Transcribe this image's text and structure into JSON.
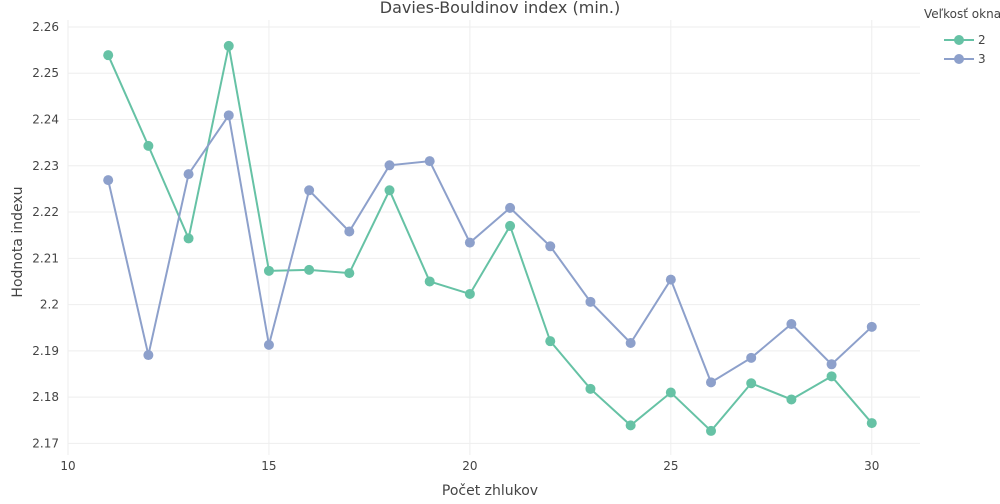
{
  "chart_data": {
    "type": "line",
    "title": "Davies-Bouldinov index (min.)",
    "xlabel": "Počet zhlukov",
    "ylabel": "Hodnota indexu",
    "xlim": [
      10,
      31.2
    ],
    "ylim": [
      2.1675,
      2.2615
    ],
    "x_ticks": [
      10,
      15,
      20,
      25,
      30
    ],
    "x_tick_labels": [
      "10",
      "15",
      "20",
      "25",
      "30"
    ],
    "y_ticks": [
      2.17,
      2.18,
      2.19,
      2.2,
      2.21,
      2.22,
      2.23,
      2.24,
      2.25,
      2.26
    ],
    "y_tick_labels": [
      "2.17",
      "2.18",
      "2.19",
      "2.2",
      "2.21",
      "2.22",
      "2.23",
      "2.24",
      "2.25",
      "2.26"
    ],
    "grid": true,
    "legend_title": "Veľkosť okna",
    "legend_position": "top-right",
    "x": [
      11,
      12,
      13,
      14,
      15,
      16,
      17,
      18,
      19,
      20,
      21,
      22,
      23,
      24,
      25,
      26,
      27,
      28,
      29,
      30
    ],
    "series": [
      {
        "name": "2",
        "color": "#66c2a5",
        "values": [
          2.2539,
          2.2343,
          2.2143,
          2.2559,
          2.2073,
          2.2075,
          2.2068,
          2.2247,
          2.205,
          2.2023,
          2.217,
          2.1921,
          2.1818,
          2.1739,
          2.181,
          2.1727,
          2.183,
          2.1795,
          2.1845,
          2.1744
        ]
      },
      {
        "name": "3",
        "color": "#8da0cb",
        "values": [
          2.2269,
          2.1891,
          2.2282,
          2.2409,
          2.1913,
          2.2247,
          2.2158,
          2.2301,
          2.231,
          2.2134,
          2.2209,
          2.2126,
          2.2006,
          2.1917,
          2.2054,
          2.1832,
          2.1885,
          2.1958,
          2.1871,
          2.1952
        ]
      }
    ]
  }
}
